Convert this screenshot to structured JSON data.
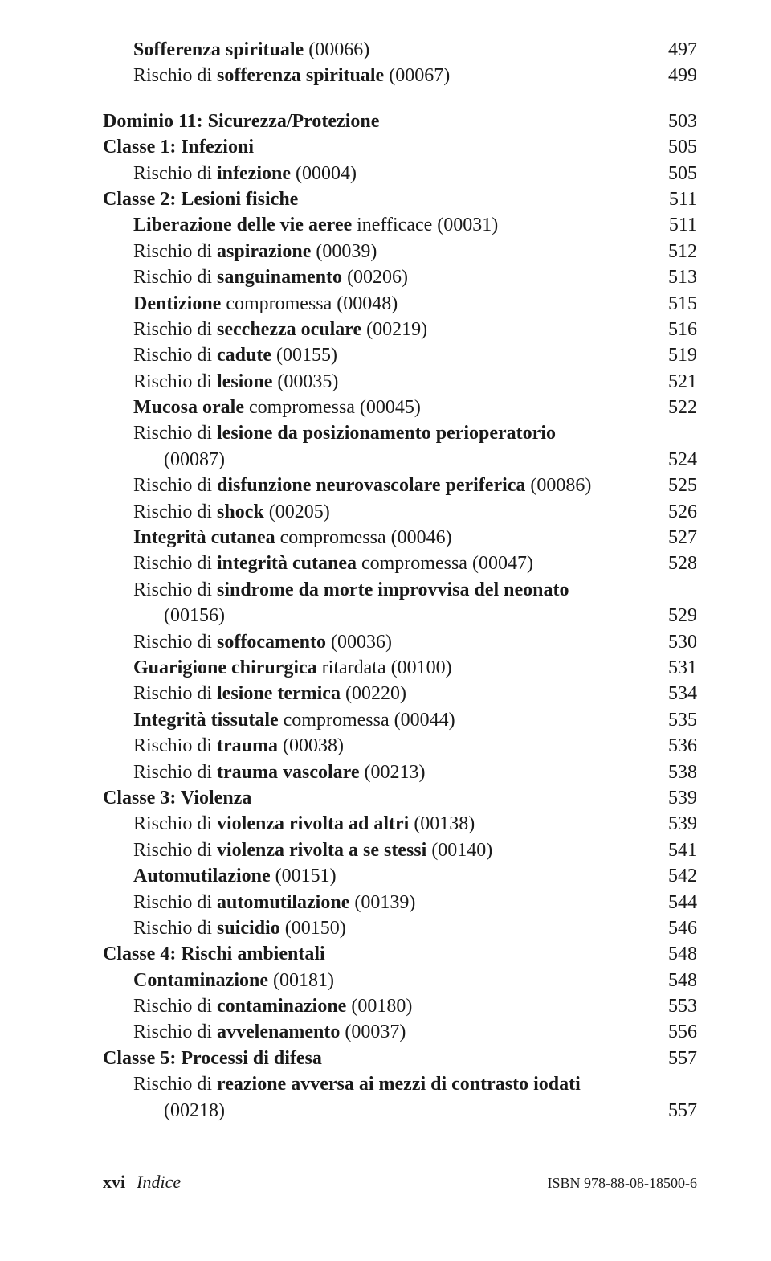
{
  "entries": [
    {
      "indent": 1,
      "parts": [
        {
          "t": "Sofferenza spirituale",
          "b": true
        },
        {
          "t": " (00066)",
          "b": false
        }
      ],
      "page": "497"
    },
    {
      "indent": 1,
      "parts": [
        {
          "t": "Rischio di ",
          "b": false
        },
        {
          "t": "sofferenza spirituale",
          "b": true
        },
        {
          "t": " (00067)",
          "b": false
        }
      ],
      "page": "499"
    },
    {
      "indent": 0,
      "gap": true,
      "parts": [
        {
          "t": "Dominio 11: Sicurezza/Protezione",
          "b": true
        }
      ],
      "page": "503"
    },
    {
      "indent": 0,
      "parts": [
        {
          "t": "Classe 1: Infezioni",
          "b": true
        }
      ],
      "page": "505"
    },
    {
      "indent": 1,
      "parts": [
        {
          "t": "Rischio di ",
          "b": false
        },
        {
          "t": "infezione",
          "b": true
        },
        {
          "t": " (00004)",
          "b": false
        }
      ],
      "page": "505"
    },
    {
      "indent": 0,
      "parts": [
        {
          "t": "Classe 2: Lesioni fisiche",
          "b": true
        }
      ],
      "page": "511"
    },
    {
      "indent": 1,
      "parts": [
        {
          "t": "Liberazione delle vie aeree",
          "b": true
        },
        {
          "t": " inefficace (00031)",
          "b": false
        }
      ],
      "page": "511"
    },
    {
      "indent": 1,
      "parts": [
        {
          "t": "Rischio di ",
          "b": false
        },
        {
          "t": "aspirazione",
          "b": true
        },
        {
          "t": " (00039)",
          "b": false
        }
      ],
      "page": "512"
    },
    {
      "indent": 1,
      "parts": [
        {
          "t": "Rischio di ",
          "b": false
        },
        {
          "t": "sanguinamento",
          "b": true
        },
        {
          "t": " (00206)",
          "b": false
        }
      ],
      "page": "513"
    },
    {
      "indent": 1,
      "parts": [
        {
          "t": "Dentizione",
          "b": true
        },
        {
          "t": " compromessa (00048)",
          "b": false
        }
      ],
      "page": "515"
    },
    {
      "indent": 1,
      "parts": [
        {
          "t": "Rischio di ",
          "b": false
        },
        {
          "t": "secchezza oculare",
          "b": true
        },
        {
          "t": " (00219)",
          "b": false
        }
      ],
      "page": "516"
    },
    {
      "indent": 1,
      "parts": [
        {
          "t": "Rischio di ",
          "b": false
        },
        {
          "t": "cadute",
          "b": true
        },
        {
          "t": " (00155)",
          "b": false
        }
      ],
      "page": "519"
    },
    {
      "indent": 1,
      "parts": [
        {
          "t": "Rischio di ",
          "b": false
        },
        {
          "t": "lesione",
          "b": true
        },
        {
          "t": " (00035)",
          "b": false
        }
      ],
      "page": "521"
    },
    {
      "indent": 1,
      "parts": [
        {
          "t": "Mucosa orale",
          "b": true
        },
        {
          "t": " compromessa (00045)",
          "b": false
        }
      ],
      "page": "522"
    },
    {
      "indent": 1,
      "parts": [
        {
          "t": "Rischio di ",
          "b": false
        },
        {
          "t": "lesione da posizionamento perioperatorio",
          "b": true
        }
      ],
      "page": ""
    },
    {
      "indent": 2,
      "parts": [
        {
          "t": "(00087)",
          "b": false
        }
      ],
      "page": "524"
    },
    {
      "indent": 1,
      "parts": [
        {
          "t": "Rischio di ",
          "b": false
        },
        {
          "t": "disfunzione neurovascolare periferica",
          "b": true
        },
        {
          "t": " (00086)",
          "b": false
        }
      ],
      "page": "525"
    },
    {
      "indent": 1,
      "parts": [
        {
          "t": "Rischio di ",
          "b": false
        },
        {
          "t": "shock",
          "b": true
        },
        {
          "t": " (00205)",
          "b": false
        }
      ],
      "page": "526"
    },
    {
      "indent": 1,
      "parts": [
        {
          "t": "Integrità cutanea",
          "b": true
        },
        {
          "t": " compromessa (00046)",
          "b": false
        }
      ],
      "page": "527"
    },
    {
      "indent": 1,
      "parts": [
        {
          "t": "Rischio di ",
          "b": false
        },
        {
          "t": "integrità cutanea",
          "b": true
        },
        {
          "t": " compromessa (00047)",
          "b": false
        }
      ],
      "page": "528"
    },
    {
      "indent": 1,
      "parts": [
        {
          "t": "Rischio di ",
          "b": false
        },
        {
          "t": "sindrome da morte improvvisa del neonato",
          "b": true
        }
      ],
      "page": ""
    },
    {
      "indent": 2,
      "parts": [
        {
          "t": "(00156)",
          "b": false
        }
      ],
      "page": "529"
    },
    {
      "indent": 1,
      "parts": [
        {
          "t": "Rischio di ",
          "b": false
        },
        {
          "t": "soffocamento",
          "b": true
        },
        {
          "t": " (00036)",
          "b": false
        }
      ],
      "page": "530"
    },
    {
      "indent": 1,
      "parts": [
        {
          "t": "Guarigione chirurgica",
          "b": true
        },
        {
          "t": " ritardata (00100)",
          "b": false
        }
      ],
      "page": "531"
    },
    {
      "indent": 1,
      "parts": [
        {
          "t": "Rischio di ",
          "b": false
        },
        {
          "t": "lesione termica",
          "b": true
        },
        {
          "t": " (00220)",
          "b": false
        }
      ],
      "page": "534"
    },
    {
      "indent": 1,
      "parts": [
        {
          "t": "Integrità tissutale",
          "b": true
        },
        {
          "t": " compromessa (00044)",
          "b": false
        }
      ],
      "page": "535"
    },
    {
      "indent": 1,
      "parts": [
        {
          "t": "Rischio di ",
          "b": false
        },
        {
          "t": "trauma",
          "b": true
        },
        {
          "t": " (00038)",
          "b": false
        }
      ],
      "page": "536"
    },
    {
      "indent": 1,
      "parts": [
        {
          "t": "Rischio di ",
          "b": false
        },
        {
          "t": "trauma vascolare",
          "b": true
        },
        {
          "t": " (00213)",
          "b": false
        }
      ],
      "page": "538"
    },
    {
      "indent": 0,
      "parts": [
        {
          "t": "Classe 3: Violenza",
          "b": true
        }
      ],
      "page": "539"
    },
    {
      "indent": 1,
      "parts": [
        {
          "t": "Rischio di ",
          "b": false
        },
        {
          "t": "violenza rivolta ad altri",
          "b": true
        },
        {
          "t": " (00138)",
          "b": false
        }
      ],
      "page": "539"
    },
    {
      "indent": 1,
      "parts": [
        {
          "t": "Rischio di ",
          "b": false
        },
        {
          "t": "violenza rivolta a se stessi",
          "b": true
        },
        {
          "t": " (00140)",
          "b": false
        }
      ],
      "page": "541"
    },
    {
      "indent": 1,
      "parts": [
        {
          "t": "Automutilazione",
          "b": true
        },
        {
          "t": " (00151)",
          "b": false
        }
      ],
      "page": "542"
    },
    {
      "indent": 1,
      "parts": [
        {
          "t": "Rischio di ",
          "b": false
        },
        {
          "t": "automutilazione",
          "b": true
        },
        {
          "t": " (00139)",
          "b": false
        }
      ],
      "page": "544"
    },
    {
      "indent": 1,
      "parts": [
        {
          "t": "Rischio di ",
          "b": false
        },
        {
          "t": "suicidio",
          "b": true
        },
        {
          "t": " (00150)",
          "b": false
        }
      ],
      "page": "546"
    },
    {
      "indent": 0,
      "parts": [
        {
          "t": "Classe 4: Rischi ambientali",
          "b": true
        }
      ],
      "page": "548"
    },
    {
      "indent": 1,
      "parts": [
        {
          "t": "Contaminazione",
          "b": true
        },
        {
          "t": " (00181)",
          "b": false
        }
      ],
      "page": "548"
    },
    {
      "indent": 1,
      "parts": [
        {
          "t": "Rischio di ",
          "b": false
        },
        {
          "t": "contaminazione",
          "b": true
        },
        {
          "t": " (00180)",
          "b": false
        }
      ],
      "page": "553"
    },
    {
      "indent": 1,
      "parts": [
        {
          "t": "Rischio di ",
          "b": false
        },
        {
          "t": "avvelenamento",
          "b": true
        },
        {
          "t": " (00037)",
          "b": false
        }
      ],
      "page": "556"
    },
    {
      "indent": 0,
      "parts": [
        {
          "t": "Classe 5: Processi di difesa",
          "b": true
        }
      ],
      "page": "557"
    },
    {
      "indent": 1,
      "parts": [
        {
          "t": "Rischio di ",
          "b": false
        },
        {
          "t": "reazione avversa ai mezzi di contrasto iodati",
          "b": true
        }
      ],
      "page": ""
    },
    {
      "indent": 2,
      "parts": [
        {
          "t": "(00218)",
          "b": false
        }
      ],
      "page": "557"
    }
  ],
  "footer": {
    "page_number": "xvi",
    "section": "Indice",
    "isbn": "ISBN 978-88-08-18500-6"
  }
}
